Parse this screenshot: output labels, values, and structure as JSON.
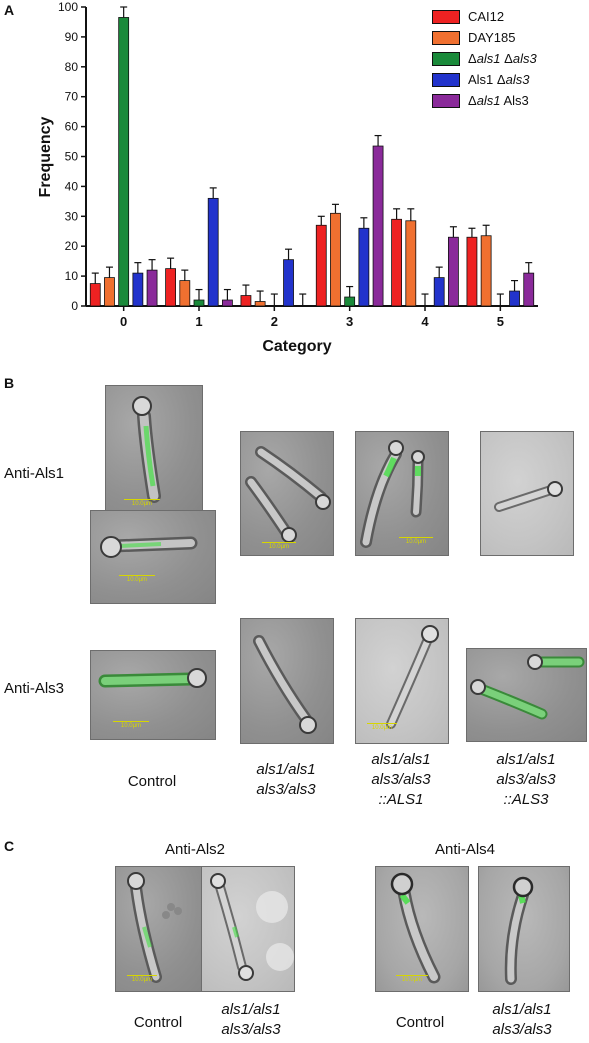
{
  "panel_letters": {
    "a": "A",
    "b": "B",
    "c": "C"
  },
  "chart_data": {
    "type": "bar",
    "xlabel": "Category",
    "ylabel": "Frequency",
    "categories": [
      "0",
      "1",
      "2",
      "3",
      "4",
      "5"
    ],
    "ylim": [
      0,
      100
    ],
    "yticks": [
      "0",
      "10",
      "20",
      "30",
      "40",
      "50",
      "60",
      "70",
      "80",
      "90",
      "100"
    ],
    "legend_position": "top-right",
    "series": [
      {
        "name": "CAI12",
        "color": "#ee2222",
        "values": [
          7.5,
          12.5,
          3.5,
          27,
          29,
          23
        ],
        "errors": [
          3.5,
          3.5,
          3.5,
          3,
          3.5,
          3
        ]
      },
      {
        "name": "DAY185",
        "color": "#f07030",
        "values": [
          9.5,
          8.5,
          1.5,
          31,
          28.5,
          23.5
        ],
        "errors": [
          3.5,
          3.5,
          3.5,
          3,
          4,
          3.5
        ]
      },
      {
        "name": "Δals1 Δals3",
        "name_parts": [
          "Δ",
          "als1",
          " Δ",
          "als3",
          ""
        ],
        "color": "#1a8a3a",
        "values": [
          96.5,
          2,
          0,
          3,
          0,
          0
        ],
        "errors": [
          3.5,
          3.5,
          4,
          3.5,
          4,
          4
        ]
      },
      {
        "name": "Als1 Δals3",
        "name_parts": [
          "",
          "",
          "Als1 Δ",
          "als3",
          ""
        ],
        "color": "#2233cc",
        "values": [
          11,
          36,
          15.5,
          26,
          9.5,
          5
        ],
        "errors": [
          3.5,
          3.5,
          3.5,
          3.5,
          3.5,
          3.5
        ]
      },
      {
        "name": "Δals1 Als3",
        "name_parts": [
          "Δ",
          "als1",
          " Als3",
          "",
          ""
        ],
        "color": "#8a2a9a",
        "values": [
          12,
          2,
          0,
          53.5,
          23,
          11
        ],
        "errors": [
          3.5,
          3.5,
          4,
          3.5,
          3.5,
          3.5
        ]
      }
    ]
  },
  "panel_b": {
    "row_labels": {
      "anti_als1": "Anti-Als1",
      "anti_als3": "Anti-Als3"
    },
    "captions": [
      {
        "lines": [
          "Control"
        ],
        "italic": false
      },
      {
        "lines": [
          "als1/als1",
          "als3/als3"
        ],
        "italic": true
      },
      {
        "lines": [
          "als1/als1",
          "als3/als3",
          "::ALS1"
        ],
        "italic": true
      },
      {
        "lines": [
          "als1/als1",
          "als3/als3",
          "::ALS3"
        ],
        "italic": true
      }
    ],
    "scale_label": "10.0µm"
  },
  "panel_c": {
    "group_titles": {
      "als2": "Anti-Als2",
      "als4": "Anti-Als4"
    },
    "captions": {
      "control_1": "Control",
      "mutant_1": [
        "als1/als1",
        "als3/als3"
      ],
      "control_2": "Control",
      "mutant_2": [
        "als1/als1",
        "als3/als3"
      ]
    },
    "scale_label": "10.0µm"
  }
}
